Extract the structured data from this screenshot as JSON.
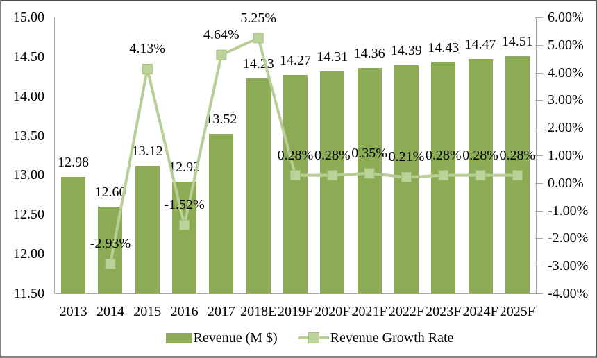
{
  "chart_data": {
    "type": "combo-bar-line",
    "title": "",
    "categories": [
      "2013",
      "2014",
      "2015",
      "2016",
      "2017",
      "2018E",
      "2019F",
      "2020F",
      "2021F",
      "2022F",
      "2023F",
      "2024F",
      "2025F"
    ],
    "series": [
      {
        "name": "Revenue (M $)",
        "type": "bar",
        "axis": "left",
        "color": "#8cab55",
        "values": [
          12.98,
          12.6,
          13.12,
          12.92,
          13.52,
          14.23,
          14.27,
          14.31,
          14.36,
          14.39,
          14.43,
          14.47,
          14.51
        ],
        "labels": [
          "12.98",
          "12.60",
          "13.12",
          "12.92",
          "13.52",
          "14.23",
          "14.27",
          "14.31",
          "14.36",
          "14.39",
          "14.43",
          "14.47",
          "14.51"
        ]
      },
      {
        "name": "Revenue Growth Rate",
        "type": "line",
        "axis": "right",
        "color": "#b8ce95",
        "marker_color": "#bcd29b",
        "marker_edge_color": "#a5c17c",
        "values": [
          null,
          -2.93,
          4.13,
          -1.52,
          4.64,
          5.25,
          0.28,
          0.28,
          0.35,
          0.21,
          0.28,
          0.28,
          0.28
        ],
        "labels": [
          null,
          "-2.93%",
          "4.13%",
          "-1.52%",
          "4.64%",
          "5.25%",
          "0.28%",
          "0.28%",
          "0.35%",
          "0.21%",
          "0.28%",
          "0.28%",
          "0.28%"
        ]
      }
    ],
    "left_axis": {
      "min": 11.5,
      "max": 15.0,
      "step": 0.5,
      "tick_labels": [
        "15.00",
        "14.50",
        "14.00",
        "13.50",
        "13.00",
        "12.50",
        "12.00",
        "11.50"
      ]
    },
    "right_axis": {
      "min": -4.0,
      "max": 6.0,
      "step": 1.0,
      "tick_labels": [
        "6.00%",
        "5.00%",
        "4.00%",
        "3.00%",
        "2.00%",
        "1.00%",
        "0.00%",
        "-1.00%",
        "-2.00%",
        "-3.00%",
        "-4.00%"
      ]
    },
    "grid": false,
    "legend_position": "bottom",
    "axis_color": "#a6a6a6",
    "text_color": "#000000"
  }
}
